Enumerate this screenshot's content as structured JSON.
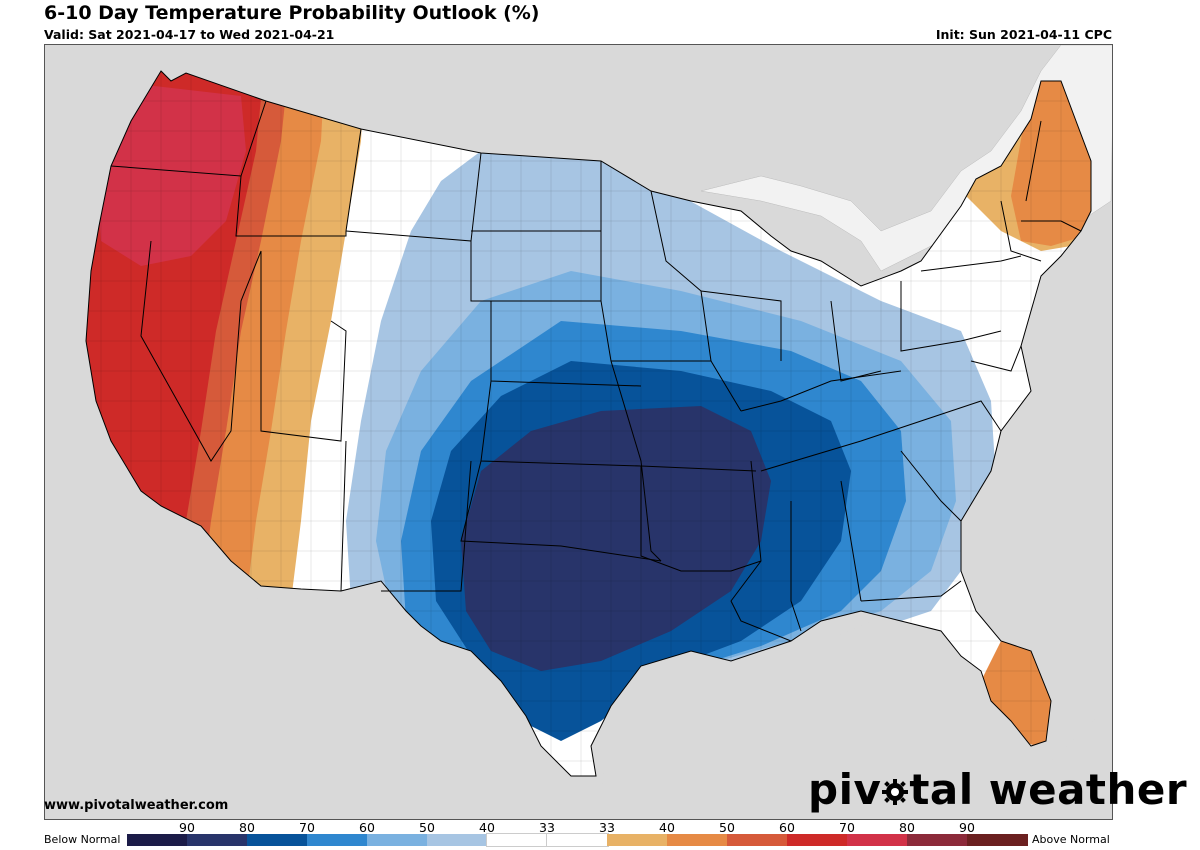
{
  "header": {
    "title": "6-10 Day Temperature Probability Outlook (%)",
    "valid": "Valid: Sat 2021-04-17 to Wed 2021-04-21",
    "init": "Init: Sun 2021-04-11 CPC"
  },
  "footer": {
    "website": "www.pivotalweather.com",
    "brand_before": "piv",
    "brand_after": "tal weather"
  },
  "legend": {
    "below_label": "Below Normal",
    "above_label": "Above Normal",
    "ticks": [
      "90",
      "80",
      "70",
      "60",
      "50",
      "40",
      "33",
      "33",
      "40",
      "50",
      "60",
      "70",
      "80",
      "90"
    ],
    "colors": [
      "#1c1c48",
      "#28346a",
      "#07539a",
      "#2f87cf",
      "#7ab1e0",
      "#a7c5e3",
      "#ffffff",
      "#ffffff",
      "#e8b266",
      "#e68a45",
      "#d65a3a",
      "#ce2a28",
      "#d23248",
      "#8c2a3a",
      "#6b2020"
    ]
  },
  "map": {
    "land_color": "#ffffff",
    "background_color": "#d9d9d9",
    "water_color": "#ffffff"
  }
}
